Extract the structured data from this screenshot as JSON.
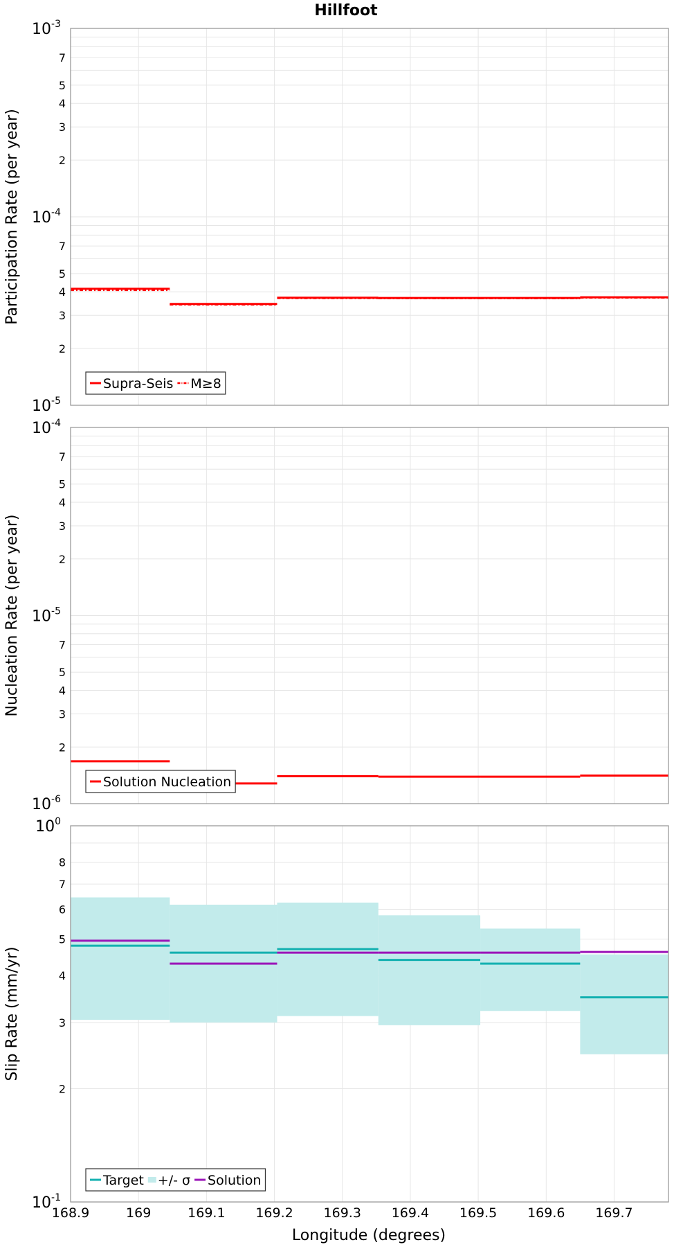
{
  "chart_data": {
    "title": "Hillfoot",
    "xlabel": "Longitude (degrees)",
    "xlim": [
      168.9,
      169.78
    ],
    "xticks": [
      "168.9",
      "169",
      "169.1",
      "169.2",
      "169.3",
      "169.4",
      "169.5",
      "169.6",
      "169.7"
    ],
    "bin_edges": [
      168.9,
      169.046,
      169.204,
      169.353,
      169.503,
      169.65,
      169.78
    ],
    "panels": [
      {
        "type": "step",
        "ylabel": "Participation Rate (per year)",
        "yscale": "log",
        "ylim": [
          1e-05,
          0.001
        ],
        "major_tick_labels": [
          "10-3",
          "10-4",
          "10-5"
        ],
        "minor_tick_labels": [
          "7",
          "5",
          "4",
          "3",
          "2"
        ],
        "grid": true,
        "legend_position": "bottom-left",
        "series": [
          {
            "name": "Supra-Seis",
            "color": "#ff0000",
            "style": "solid",
            "values": [
              4.15e-05,
              3.45e-05,
              3.72e-05,
              3.71e-05,
              3.71e-05,
              3.74e-05
            ]
          },
          {
            "name": "M≥8",
            "color": "#ff0000",
            "style": "dashdot",
            "values": [
              4.08e-05,
              3.42e-05,
              3.7e-05,
              3.69e-05,
              3.69e-05,
              3.72e-05
            ]
          }
        ]
      },
      {
        "type": "step",
        "ylabel": "Nucleation Rate (per year)",
        "yscale": "log",
        "ylim": [
          1e-06,
          0.0001
        ],
        "major_tick_labels": [
          "10-4",
          "10-5",
          "10-6"
        ],
        "minor_tick_labels": [
          "7",
          "5",
          "4",
          "3",
          "2"
        ],
        "grid": true,
        "legend_position": "bottom-left",
        "series": [
          {
            "name": "Solution Nucleation",
            "color": "#ff0000",
            "style": "solid",
            "values": [
              1.68e-06,
              1.28e-06,
              1.4e-06,
              1.39e-06,
              1.39e-06,
              1.41e-06
            ]
          }
        ]
      },
      {
        "type": "step",
        "ylabel": "Slip Rate (mm/yr)",
        "yscale": "log",
        "ylim": [
          0.1,
          1.0
        ],
        "major_tick_labels": [
          "100",
          "10-1"
        ],
        "minor_tick_labels": [
          "8",
          "7",
          "6",
          "5",
          "4",
          "3",
          "2"
        ],
        "grid": true,
        "legend_position": "bottom-left",
        "series": [
          {
            "name": "Target",
            "color": "#13b0b0",
            "style": "solid",
            "values": [
              0.48,
              0.46,
              0.47,
              0.44,
              0.43,
              0.35
            ]
          },
          {
            "name": "+/- σ",
            "color": "#c2ebeb",
            "style": "band",
            "lower": [
              0.305,
              0.3,
              0.312,
              0.295,
              0.322,
              0.247
            ],
            "upper": [
              0.645,
              0.617,
              0.625,
              0.578,
              0.533,
              0.455
            ]
          },
          {
            "name": "Solution",
            "color": "#9b14b8",
            "style": "solid",
            "values": [
              0.495,
              0.43,
              0.46,
              0.46,
              0.46,
              0.462
            ]
          }
        ]
      }
    ]
  }
}
